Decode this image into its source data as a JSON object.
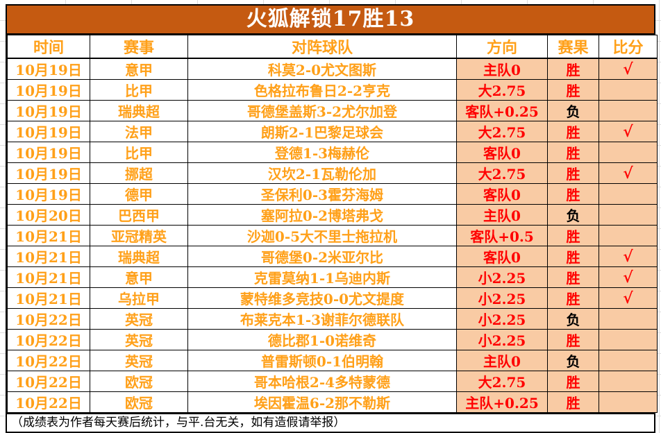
{
  "page": {
    "title": "火狐解锁17胜13",
    "footer": "（成绩表为作者每天赛后统计，与平.台无关，如有造假请举报）"
  },
  "colors": {
    "title_bg": "#C55A11",
    "orange_text": "#FFA019",
    "red_text": "#FF0000",
    "highlight_bg": "#F9CBA4",
    "loss_text": "#000000"
  },
  "table": {
    "columns": [
      "时间",
      "赛事",
      "对阵球队",
      "方向",
      "赛果",
      "比分"
    ],
    "win_label": "胜",
    "loss_label": "负",
    "check_mark": "√",
    "rows": [
      {
        "date": "10月19日",
        "league": "意甲",
        "match": "科莫2-0尤文图斯",
        "direction": "主队0",
        "result": "胜",
        "score": "√"
      },
      {
        "date": "10月19日",
        "league": "比甲",
        "match": "色格拉布鲁日2-2亨克",
        "direction": "大2.75",
        "result": "胜",
        "score": ""
      },
      {
        "date": "10月19日",
        "league": "瑞典超",
        "match": "哥德堡盖斯3-2尤尔加登",
        "direction": "客队+0.25",
        "result": "负",
        "score": ""
      },
      {
        "date": "10月19日",
        "league": "法甲",
        "match": "朗斯2-1巴黎足球会",
        "direction": "大2.75",
        "result": "胜",
        "score": "√"
      },
      {
        "date": "10月19日",
        "league": "比甲",
        "match": "登德1-3梅赫伦",
        "direction": "客队0",
        "result": "胜",
        "score": ""
      },
      {
        "date": "10月19日",
        "league": "挪超",
        "match": "汉坎2-1瓦勒伦加",
        "direction": "大2.75",
        "result": "胜",
        "score": "√"
      },
      {
        "date": "10月19日",
        "league": "德甲",
        "match": "圣保利0-3霍芬海姆",
        "direction": "客队0",
        "result": "胜",
        "score": ""
      },
      {
        "date": "10月20日",
        "league": "巴西甲",
        "match": "塞阿拉0-2博塔弗戈",
        "direction": "主队0",
        "result": "负",
        "score": ""
      },
      {
        "date": "10月21日",
        "league": "亚冠精英",
        "match": "沙迦0-5大不里士拖拉机",
        "direction": "客队+0.5",
        "result": "胜",
        "score": ""
      },
      {
        "date": "10月21日",
        "league": "瑞典超",
        "match": "哥德堡0-2米亚尔比",
        "direction": "客队0",
        "result": "胜",
        "score": "√"
      },
      {
        "date": "10月21日",
        "league": "意甲",
        "match": "克雷莫纳1-1乌迪内斯",
        "direction": "小2.25",
        "result": "胜",
        "score": "√"
      },
      {
        "date": "10月21日",
        "league": "乌拉甲",
        "match": "蒙特维多竞技0-0尤文提度",
        "direction": "小2.25",
        "result": "胜",
        "score": "√"
      },
      {
        "date": "10月22日",
        "league": "英冠",
        "match": "布莱克本1-3谢菲尔德联队",
        "direction": "小2.25",
        "result": "负",
        "score": ""
      },
      {
        "date": "10月22日",
        "league": "英冠",
        "match": "德比郡1-0诺维奇",
        "direction": "小2.25",
        "result": "胜",
        "score": ""
      },
      {
        "date": "10月22日",
        "league": "英冠",
        "match": "普雷斯顿0-1伯明翰",
        "direction": "主队0",
        "result": "负",
        "score": ""
      },
      {
        "date": "10月22日",
        "league": "欧冠",
        "match": "哥本哈根2-4多特蒙德",
        "direction": "大2.75",
        "result": "胜",
        "score": ""
      },
      {
        "date": "10月22日",
        "league": "欧冠",
        "match": "埃因霍温6-2那不勒斯",
        "direction": "主队+0.25",
        "result": "胜",
        "score": ""
      }
    ]
  }
}
